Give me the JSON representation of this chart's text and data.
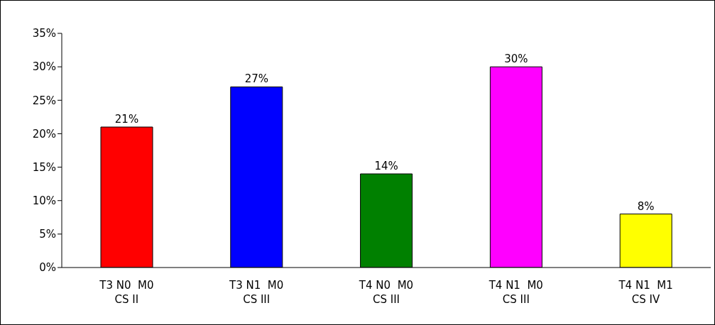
{
  "chart_data": {
    "type": "bar",
    "categories": [
      "T3 N0  M0\nCS II",
      "T3 N1  M0\nCS III",
      "T4 N0  M0\nCS III",
      "T4 N1  M0\nCS III",
      "T4 N1  M1\nCS IV"
    ],
    "values": [
      21,
      27,
      14,
      30,
      8
    ],
    "colors": [
      "#ff0000",
      "#0000ff",
      "#008000",
      "#ff00ff",
      "#ffff00"
    ],
    "value_labels": [
      "21%",
      "27%",
      "14%",
      "30%",
      "8%"
    ],
    "ylim": [
      0,
      35
    ],
    "yticks": [
      {
        "value": 0,
        "label": "0%"
      },
      {
        "value": 5,
        "label": "5%"
      },
      {
        "value": 10,
        "label": "10%"
      },
      {
        "value": 15,
        "label": "15%"
      },
      {
        "value": 20,
        "label": "20%"
      },
      {
        "value": 25,
        "label": "25%"
      },
      {
        "value": 30,
        "label": "30%"
      },
      {
        "value": 35,
        "label": "35%"
      }
    ],
    "grid": false,
    "legend": false
  }
}
